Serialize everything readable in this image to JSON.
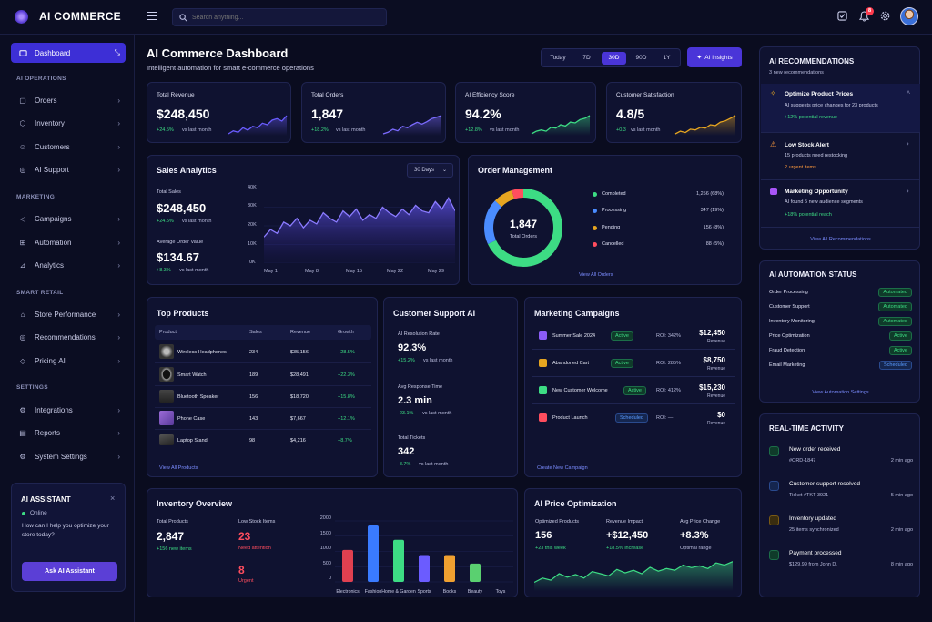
{
  "brand": {
    "name": "AI COMMERCE"
  },
  "search": {
    "placeholder": "Search anything..."
  },
  "topbar": {
    "notif_count": "8"
  },
  "sidebar": {
    "dashboard": "Dashboard",
    "sections": [
      {
        "title": "AI OPERATIONS",
        "items": [
          "Orders",
          "Inventory",
          "Customers",
          "AI Support"
        ]
      },
      {
        "title": "MARKETING",
        "items": [
          "Campaigns",
          "Automation",
          "Analytics"
        ]
      },
      {
        "title": "SMART RETAIL",
        "items": [
          "Store Performance",
          "Recommendations",
          "Pricing AI"
        ]
      },
      {
        "title": "SETTINGS",
        "items": [
          "Integrations",
          "Reports",
          "System Settings"
        ]
      }
    ]
  },
  "assistant": {
    "title": "AI ASSISTANT",
    "status": "Online",
    "message": "How can I help you optimize your store today?",
    "button": "Ask AI Assistant"
  },
  "header": {
    "title": "AI Commerce Dashboard",
    "subtitle": "Intelligent automation for smart e-commerce operations",
    "ranges": [
      "Today",
      "7D",
      "30D",
      "90D",
      "1Y"
    ],
    "active_range": "30D",
    "insights": "AI Insights"
  },
  "kpis": [
    {
      "label": "Total Revenue",
      "value": "$248,450",
      "delta": "+24.5%",
      "suffix": "vs last month",
      "color": "#6a5cff",
      "spark": [
        3,
        4,
        3.5,
        5,
        4.2,
        5.5,
        5,
        6.5,
        6,
        7.5,
        8,
        7.2,
        9
      ]
    },
    {
      "label": "Total Orders",
      "value": "1,847",
      "delta": "+18.2%",
      "suffix": "vs last month",
      "color": "#7b6bff",
      "spark": [
        3,
        3.5,
        4.5,
        4,
        5.5,
        5,
        6,
        6.8,
        6.2,
        7,
        8,
        8.5,
        9
      ]
    },
    {
      "label": "AI Efficiency Score",
      "value": "94.2%",
      "delta": "+12.8%",
      "suffix": "vs last month",
      "color": "#3ddc84",
      "spark": [
        2,
        3,
        3.5,
        3,
        4.5,
        4.2,
        5.5,
        5,
        6.5,
        6.2,
        7.5,
        8,
        9
      ]
    },
    {
      "label": "Customer Satisfaction",
      "value": "4.8/5",
      "delta": "+0.3",
      "suffix": "vs last month",
      "color": "#e6a520",
      "spark": [
        2,
        3,
        2.5,
        3.8,
        3.5,
        4.5,
        4.2,
        5.5,
        5.2,
        6.5,
        7,
        8,
        9
      ]
    }
  ],
  "sales": {
    "title": "Sales Analytics",
    "range": "30 Days",
    "total_label": "Total Sales",
    "total": "$248,450",
    "total_delta": "+24.5%",
    "total_suffix": "vs last month",
    "aov_label": "Average Order Value",
    "aov": "$134.67",
    "aov_delta": "+8.3%",
    "aov_suffix": "vs last month",
    "yticks": [
      "40K",
      "30K",
      "20K",
      "10K",
      "0K"
    ],
    "xticks": [
      "May 1",
      "May 8",
      "May 15",
      "May 22",
      "May 29"
    ]
  },
  "sales_series": [
    14,
    18,
    16,
    22,
    20,
    24,
    19,
    23,
    21,
    27,
    24,
    22,
    28,
    25,
    29,
    23,
    26,
    24,
    30,
    27,
    25,
    29,
    26,
    31,
    28,
    27,
    33,
    29,
    35,
    28
  ],
  "orders": {
    "title": "Order Management",
    "total": "1,847",
    "total_label": "Total Orders",
    "link": "View All Orders",
    "items": [
      {
        "label": "Completed",
        "value": "1,256 (68%)",
        "color": "#3ddc84",
        "pct": 68
      },
      {
        "label": "Processing",
        "value": "347 (19%)",
        "color": "#4a8cff",
        "pct": 19
      },
      {
        "label": "Pending",
        "value": "156 (8%)",
        "color": "#e6a520",
        "pct": 8
      },
      {
        "label": "Cancelled",
        "value": "88 (5%)",
        "color": "#ff4d5e",
        "pct": 5
      }
    ]
  },
  "products": {
    "title": "Top Products",
    "headers": [
      "Product",
      "Sales",
      "Revenue",
      "Growth"
    ],
    "link": "View All Products",
    "rows": [
      {
        "name": "Wireless Headphones",
        "sales": "234",
        "revenue": "$35,156",
        "growth": "+28.5%"
      },
      {
        "name": "Smart Watch",
        "sales": "189",
        "revenue": "$28,491",
        "growth": "+22.3%"
      },
      {
        "name": "Bluetooth Speaker",
        "sales": "156",
        "revenue": "$18,720",
        "growth": "+15.8%"
      },
      {
        "name": "Phone Case",
        "sales": "143",
        "revenue": "$7,667",
        "growth": "+12.1%"
      },
      {
        "name": "Laptop Stand",
        "sales": "98",
        "revenue": "$4,216",
        "growth": "+8.7%"
      }
    ]
  },
  "support": {
    "title": "Customer Support AI",
    "blocks": [
      {
        "label": "AI Resolution Rate",
        "value": "92.3%",
        "delta": "+15.2%",
        "suffix": "vs last month"
      },
      {
        "label": "Avg Response Time",
        "value": "2.3 min",
        "delta": "-23.1%",
        "suffix": "vs last month"
      },
      {
        "label": "Total Tickets",
        "value": "342",
        "delta": "-8.7%",
        "suffix": "vs last month"
      }
    ]
  },
  "campaigns": {
    "title": "Marketing Campaigns",
    "link": "Create New Campaign",
    "rows": [
      {
        "name": "Summer Sale 2024",
        "status": "Active",
        "roi": "ROI: 342%",
        "revenue": "$12,450",
        "rev_label": "Revenue",
        "color": "#8b5cf6"
      },
      {
        "name": "Abandoned Cart",
        "status": "Active",
        "roi": "ROI: 285%",
        "revenue": "$8,750",
        "rev_label": "Revenue",
        "color": "#e6a520"
      },
      {
        "name": "New Customer Welcome",
        "status": "Active",
        "roi": "ROI: 412%",
        "revenue": "$15,230",
        "rev_label": "Revenue",
        "color": "#3ddc84"
      },
      {
        "name": "Product Launch",
        "status": "Scheduled",
        "roi": "ROI: —",
        "revenue": "$0",
        "rev_label": "Revenue",
        "color": "#ff4d5e"
      }
    ]
  },
  "inventory": {
    "title": "Inventory Overview",
    "total_label": "Total Products",
    "total": "2,847",
    "new_items": "+156 new items",
    "low_label": "Low Stock Items",
    "low": "23",
    "low_note": "Need attention",
    "urgent": "8",
    "urgent_label": "Urgent",
    "yticks": [
      "2000",
      "1500",
      "1000",
      "500",
      "0"
    ]
  },
  "inventory_chart": {
    "categories": [
      "Electronics",
      "Fashion",
      "Home & Garden",
      "Sports",
      "Books",
      "Beauty",
      "Toys"
    ],
    "values": [
      1050,
      1850,
      1380,
      880,
      880,
      600,
      null
    ],
    "colors": [
      "#e04050",
      "#3a7bff",
      "#3ddc84",
      "#6b5cff",
      "#f0a030",
      "#5ad070",
      "#3ddc84"
    ]
  },
  "pricing": {
    "title": "AI Price Optimization",
    "stats": [
      {
        "label": "Optimized Products",
        "value": "156",
        "sub": "+23 this week"
      },
      {
        "label": "Revenue Impact",
        "value": "+$12,450",
        "sub": "+18.5% increase"
      },
      {
        "label": "Avg Price Change",
        "value": "+8.3%",
        "sub": "Optimal range"
      }
    ]
  },
  "pricing_series": [
    5,
    6,
    5.5,
    7,
    6.2,
    6.8,
    6,
    7.5,
    7,
    6.5,
    8,
    7.2,
    7.8,
    7,
    8.5,
    7.6,
    8.2,
    7.8,
    9,
    8.4,
    8.8,
    8.2,
    9.5,
    9,
    9.8
  ],
  "recs": {
    "title": "AI RECOMMENDATIONS",
    "sub": "3 new recommendations",
    "link": "View All Recommendations",
    "items": [
      {
        "title": "Optimize Product Prices",
        "desc": "AI suggests price changes for 23 products",
        "note": "+12% potential revenue",
        "color": "#e6a520"
      },
      {
        "title": "Low Stock Alert",
        "desc": "15 products need restocking",
        "note": "2 urgent items",
        "color": "#ff9a3c"
      },
      {
        "title": "Marketing Opportunity",
        "desc": "AI found 5 new audience segments",
        "note": "+18% potential reach",
        "color": "#a855f7"
      }
    ]
  },
  "automation": {
    "title": "AI AUTOMATION STATUS",
    "link": "View Automation Settings",
    "rows": [
      {
        "label": "Order Processing",
        "status": "Automated"
      },
      {
        "label": "Customer Support",
        "status": "Automated"
      },
      {
        "label": "Inventory Monitoring",
        "status": "Automated"
      },
      {
        "label": "Price Optimization",
        "status": "Active"
      },
      {
        "label": "Fraud Detection",
        "status": "Active"
      },
      {
        "label": "Email Marketing",
        "status": "Scheduled"
      }
    ]
  },
  "activity": {
    "title": "REAL-TIME ACTIVITY",
    "items": [
      {
        "title": "New order received",
        "sub": "#ORD-1847",
        "time": "2 min ago",
        "color": "#3ddc84"
      },
      {
        "title": "Customer support resolved",
        "sub": "Ticket #TKT-3921",
        "time": "5 min ago",
        "color": "#4a8cff"
      },
      {
        "title": "Inventory updated",
        "sub": "25 items synchronized",
        "time": "2 min ago",
        "color": "#e6a520"
      },
      {
        "title": "Payment processed",
        "sub": "$129.99 from John D.",
        "time": "8 min ago",
        "color": "#3ddc84"
      }
    ]
  }
}
